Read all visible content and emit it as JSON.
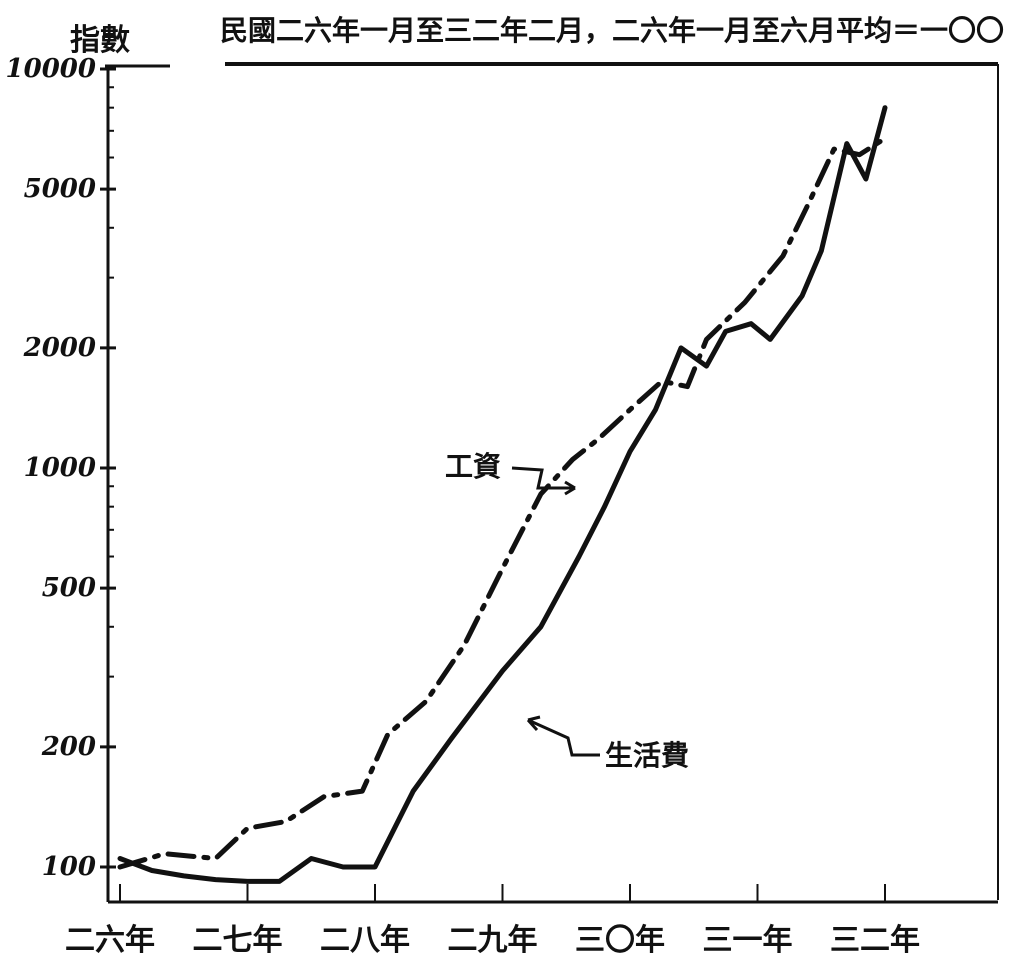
{
  "chart_data": {
    "type": "line",
    "title": "民國二六年一月至三二年二月，二六年一月至六月平均＝一〇〇",
    "ylabel": "指數",
    "xlabel": "",
    "y_scale": "log",
    "ylim": [
      80,
      10000
    ],
    "y_ticks": [
      {
        "value": 100,
        "label": "100"
      },
      {
        "value": 200,
        "label": "200"
      },
      {
        "value": 500,
        "label": "500"
      },
      {
        "value": 1000,
        "label": "1000"
      },
      {
        "value": 2000,
        "label": "2000"
      },
      {
        "value": 5000,
        "label": "5000"
      },
      {
        "value": 10000,
        "label": "10000"
      }
    ],
    "x_ticks": [
      "二六年",
      "二七年",
      "二八年",
      "二九年",
      "三〇年",
      "三一年",
      "三二年"
    ],
    "grid": false,
    "series": [
      {
        "name": "工資",
        "style": "dashed",
        "x": [
          0.0,
          0.35,
          0.75,
          1.0,
          1.3,
          1.6,
          1.9,
          2.1,
          2.4,
          2.7,
          3.0,
          3.3,
          3.55,
          3.75,
          4.0,
          4.25,
          4.45,
          4.6,
          4.9,
          5.2,
          5.4,
          5.6,
          5.8,
          6.0
        ],
        "values": [
          100,
          108,
          105,
          125,
          130,
          150,
          155,
          215,
          260,
          360,
          560,
          860,
          1050,
          1180,
          1400,
          1650,
          1600,
          2100,
          2600,
          3400,
          4600,
          6300,
          6100,
          6700
        ]
      },
      {
        "name": "生活費",
        "style": "solid",
        "x": [
          0.0,
          0.25,
          0.5,
          0.75,
          1.0,
          1.25,
          1.5,
          1.75,
          2.0,
          2.3,
          2.6,
          3.0,
          3.3,
          3.6,
          3.8,
          4.0,
          4.2,
          4.4,
          4.6,
          4.75,
          4.95,
          5.1,
          5.35,
          5.5,
          5.7,
          5.85,
          6.0
        ],
        "values": [
          105,
          98,
          95,
          93,
          92,
          92,
          105,
          100,
          100,
          155,
          210,
          310,
          400,
          600,
          800,
          1100,
          1400,
          2000,
          1800,
          2200,
          2300,
          2100,
          2700,
          3500,
          6500,
          5300,
          8000
        ]
      }
    ],
    "annotations": [
      {
        "text": "工資",
        "series": "工資"
      },
      {
        "text": "生活費",
        "series": "生活費"
      }
    ]
  }
}
